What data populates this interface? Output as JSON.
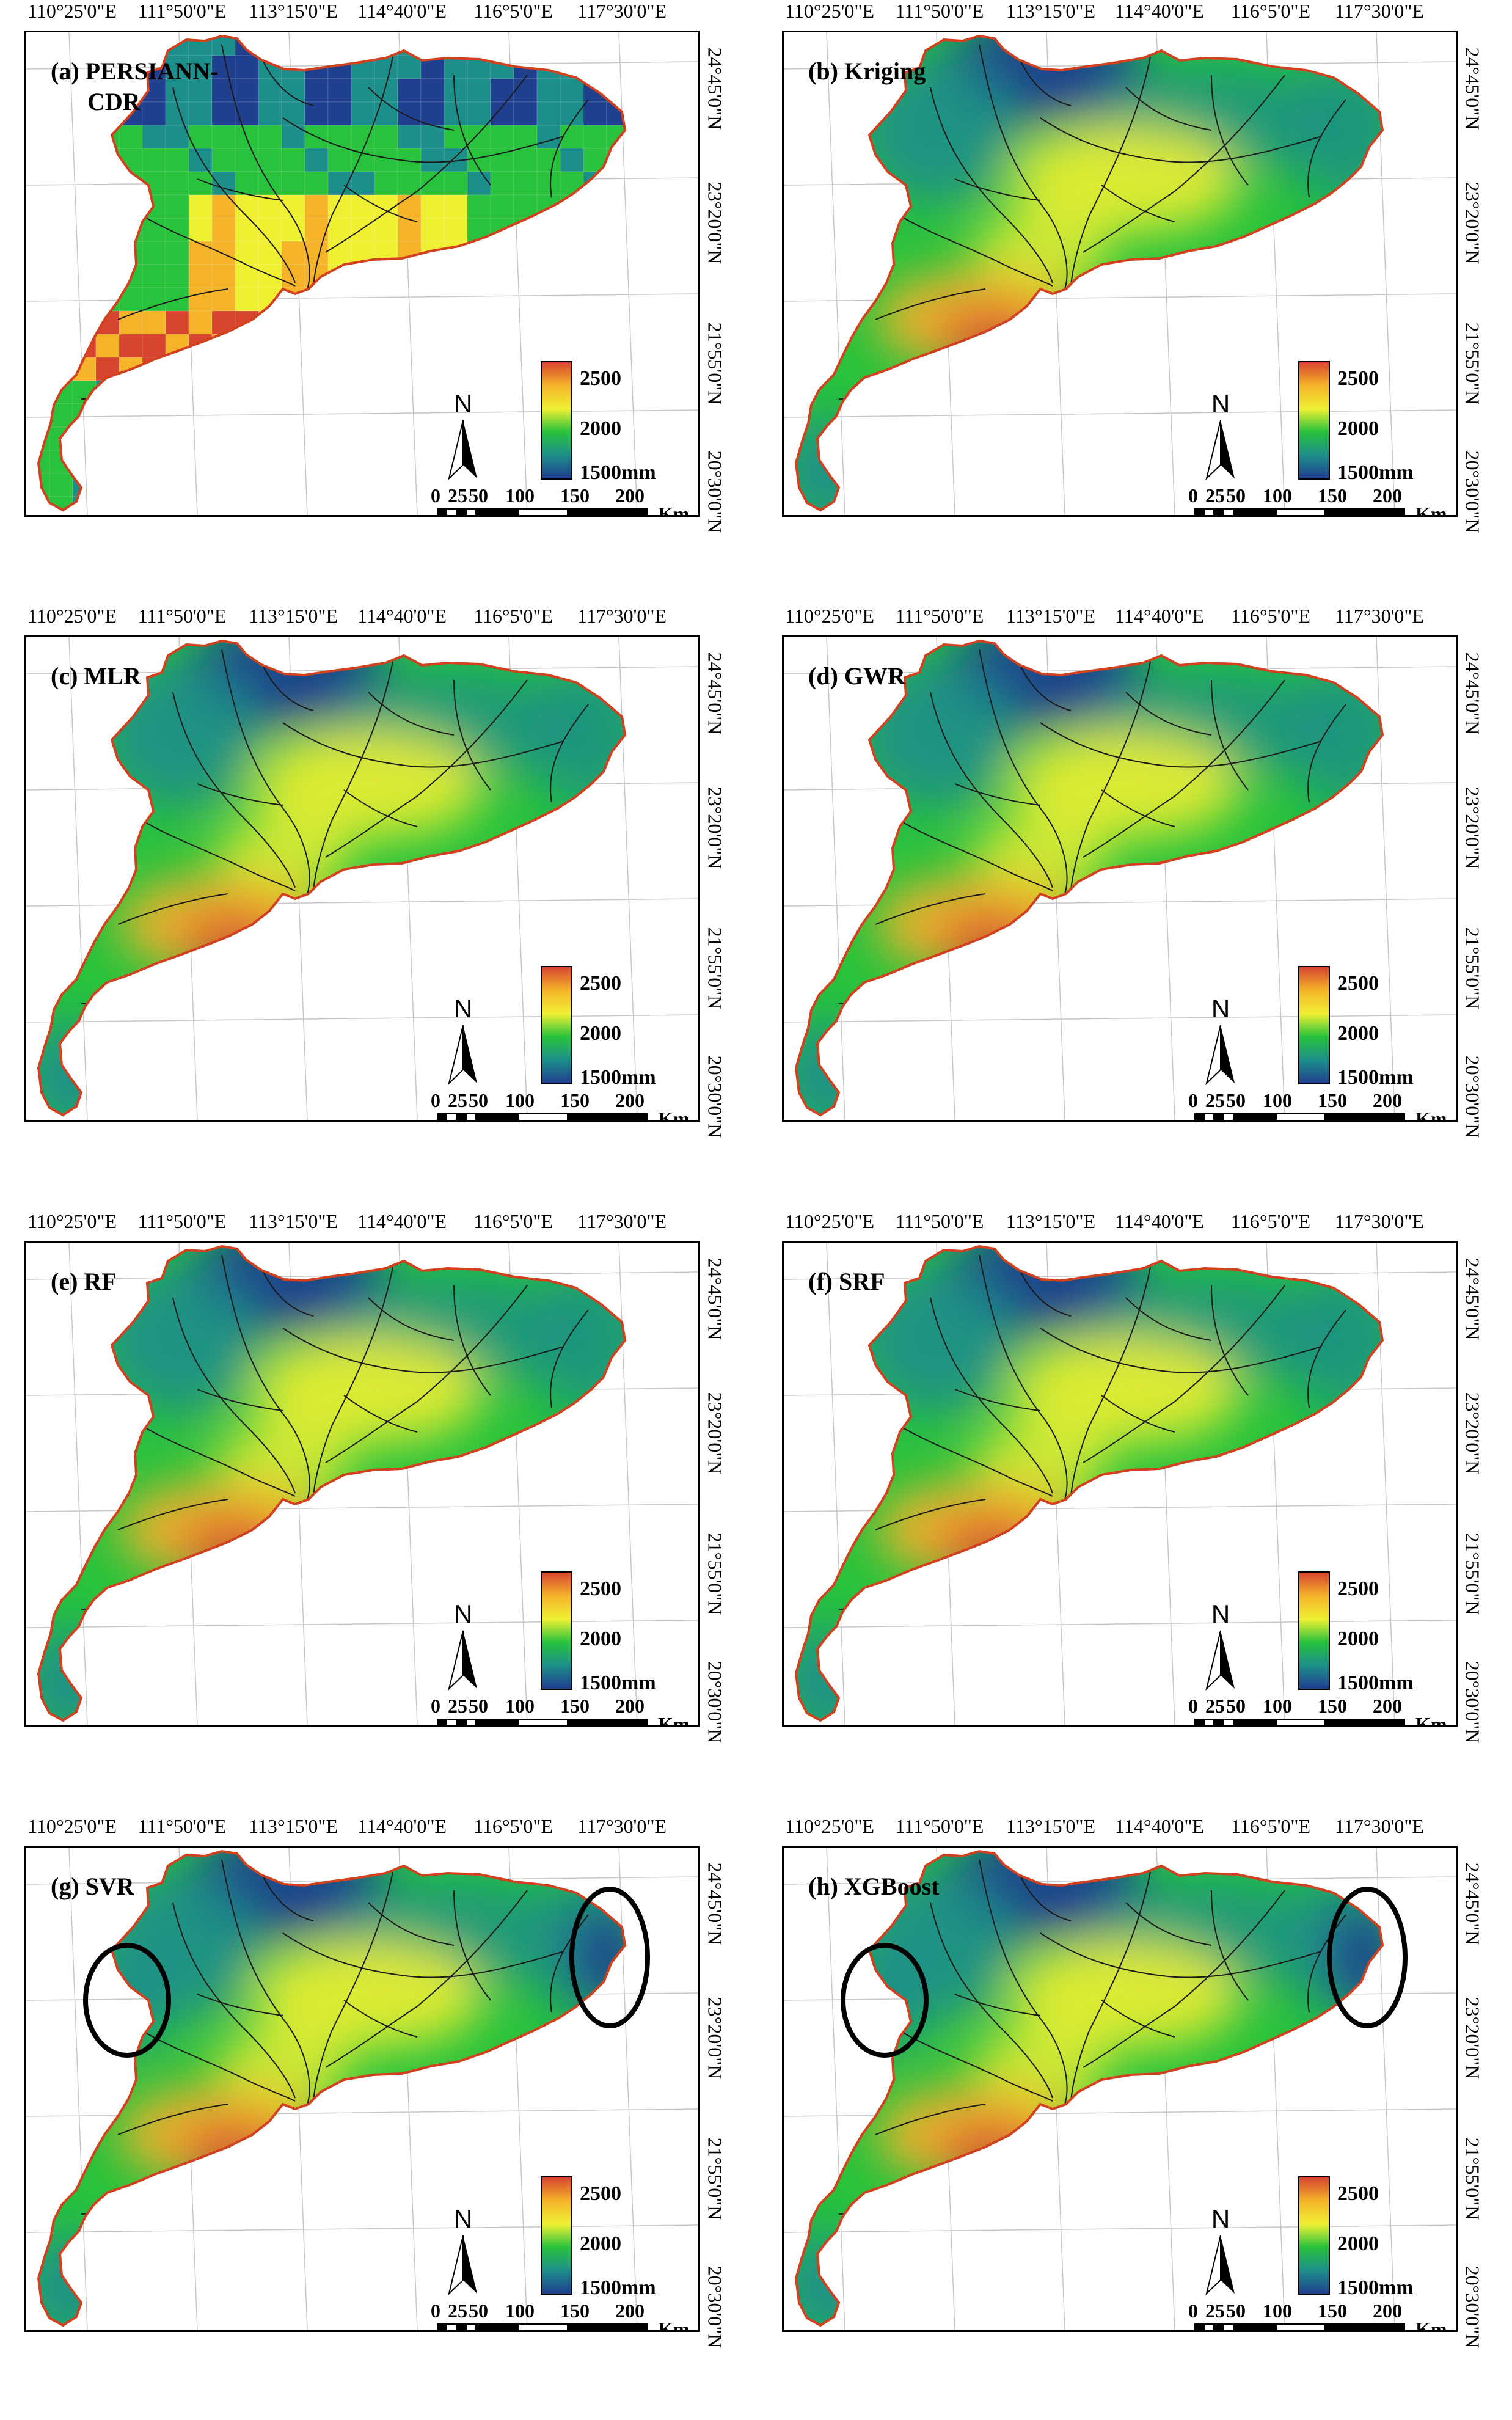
{
  "figure": {
    "lon_ticks": [
      "110°25'0\"E",
      "111°50'0\"E",
      "113°15'0\"E",
      "114°40'0\"E",
      "116°5'0\"E",
      "117°30'0\"E"
    ],
    "lat_ticks": [
      "24°45'0\"N",
      "23°20'0\"N",
      "21°55'0\"N",
      "20°30'0\"N"
    ],
    "legend": {
      "max_label": "2500",
      "mid_label": "2000",
      "min_label": "1500mm",
      "colors": [
        "#d7452f",
        "#f5b32a",
        "#f0f032",
        "#28c23c",
        "#1d8f8a",
        "#1f3f8f"
      ]
    },
    "north_label": "N",
    "scale": {
      "labels": [
        "0",
        "25",
        "50",
        "100",
        "150",
        "200"
      ],
      "unit": "Km"
    },
    "highlight_color": "#000000",
    "boundary_color": "#d2401e",
    "panels": [
      {
        "label": "(a) PERSIANN-",
        "label2": "CDR",
        "style": "pixel"
      },
      {
        "label": "(b) Kriging",
        "label2": "",
        "style": "smooth"
      },
      {
        "label": "(c) MLR",
        "label2": "",
        "style": "smooth"
      },
      {
        "label": "(d) GWR",
        "label2": "",
        "style": "smooth"
      },
      {
        "label": "(e) RF",
        "label2": "",
        "style": "smooth"
      },
      {
        "label": "(f) SRF",
        "label2": "",
        "style": "smooth"
      },
      {
        "label": "(g) SVR",
        "label2": "",
        "style": "smooth",
        "circles": true
      },
      {
        "label": "(h) XGBoost",
        "label2": "",
        "style": "smooth",
        "circles": true
      }
    ]
  }
}
